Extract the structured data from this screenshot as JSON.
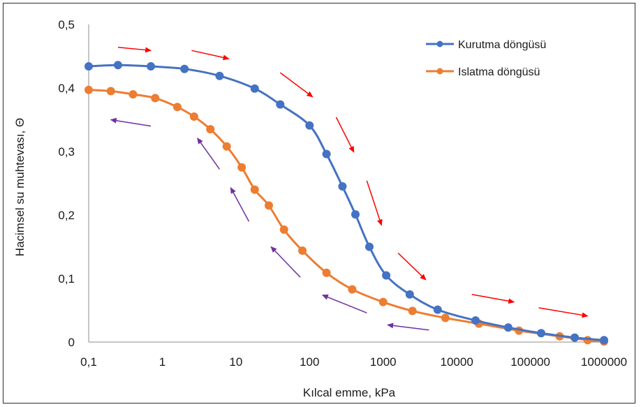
{
  "chart_data": {
    "type": "line",
    "title": "",
    "xlabel": "Kılcal emme, kPa",
    "ylabel": "Hacimsel su muhtevası, Θ",
    "x_scale": "log",
    "xlim": [
      0.1,
      1000000
    ],
    "ylim": [
      0,
      0.5
    ],
    "x_tick_labels": [
      "0,1",
      "1",
      "10",
      "100",
      "1000",
      "10000",
      "100000",
      "1000000"
    ],
    "y_tick_labels": [
      "0",
      "0,1",
      "0,2",
      "0,3",
      "0,4",
      "0,5"
    ],
    "grid": false,
    "legend_position": "top-right",
    "series": [
      {
        "name": "Kurutma döngüsü",
        "color": "#4472C4",
        "points": [
          [
            0.1,
            0.434
          ],
          [
            0.25,
            0.436
          ],
          [
            0.7,
            0.434
          ],
          [
            2,
            0.43
          ],
          [
            6,
            0.419
          ],
          [
            18,
            0.399
          ],
          [
            40,
            0.374
          ],
          [
            100,
            0.341
          ],
          [
            170,
            0.296
          ],
          [
            280,
            0.245
          ],
          [
            420,
            0.201
          ],
          [
            650,
            0.15
          ],
          [
            1100,
            0.105
          ],
          [
            2300,
            0.075
          ],
          [
            5500,
            0.051
          ],
          [
            18000,
            0.034
          ],
          [
            50000,
            0.023
          ],
          [
            140000,
            0.014
          ],
          [
            400000,
            0.007
          ],
          [
            1000000,
            0.003
          ]
        ]
      },
      {
        "name": "Islatma döngüsü",
        "color": "#ED7D31",
        "points": [
          [
            0.1,
            0.397
          ],
          [
            0.2,
            0.395
          ],
          [
            0.4,
            0.39
          ],
          [
            0.8,
            0.384
          ],
          [
            1.6,
            0.37
          ],
          [
            2.7,
            0.355
          ],
          [
            4.5,
            0.335
          ],
          [
            7.5,
            0.308
          ],
          [
            12,
            0.275
          ],
          [
            18,
            0.24
          ],
          [
            28,
            0.215
          ],
          [
            45,
            0.177
          ],
          [
            80,
            0.144
          ],
          [
            170,
            0.109
          ],
          [
            380,
            0.083
          ],
          [
            1000,
            0.063
          ],
          [
            2500,
            0.049
          ],
          [
            7000,
            0.038
          ],
          [
            20000,
            0.029
          ],
          [
            70000,
            0.018
          ],
          [
            250000,
            0.009
          ],
          [
            600000,
            0.003
          ],
          [
            1000000,
            0.001
          ]
        ]
      }
    ]
  },
  "annotations": {
    "red_arrows": [
      {
        "from": [
          0.25,
          0.464
        ],
        "to": [
          0.7,
          0.459
        ],
        "color": "#FF0000"
      },
      {
        "from": [
          2.5,
          0.459
        ],
        "to": [
          8,
          0.446
        ],
        "color": "#FF0000"
      },
      {
        "from": [
          40,
          0.424
        ],
        "to": [
          110,
          0.386
        ],
        "color": "#FF0000"
      },
      {
        "from": [
          230,
          0.354
        ],
        "to": [
          400,
          0.299
        ],
        "color": "#FF0000"
      },
      {
        "from": [
          600,
          0.254
        ],
        "to": [
          950,
          0.184
        ],
        "color": "#FF0000"
      },
      {
        "from": [
          1600,
          0.14
        ],
        "to": [
          3800,
          0.098
        ],
        "color": "#FF0000"
      },
      {
        "from": [
          16000,
          0.075
        ],
        "to": [
          60000,
          0.063
        ],
        "color": "#FF0000"
      },
      {
        "from": [
          130000,
          0.054
        ],
        "to": [
          600000,
          0.041
        ],
        "color": "#FF0000"
      }
    ],
    "purple_arrows": [
      {
        "from": [
          0.7,
          0.34
        ],
        "to": [
          0.2,
          0.35
        ],
        "color": "#7030A0"
      },
      {
        "from": [
          6,
          0.272
        ],
        "to": [
          3,
          0.321
        ],
        "color": "#7030A0"
      },
      {
        "from": [
          15,
          0.19
        ],
        "to": [
          8.5,
          0.243
        ],
        "color": "#7030A0"
      },
      {
        "from": [
          75,
          0.102
        ],
        "to": [
          30,
          0.15
        ],
        "color": "#7030A0"
      },
      {
        "from": [
          600,
          0.046
        ],
        "to": [
          150,
          0.074
        ],
        "color": "#7030A0"
      },
      {
        "from": [
          4200,
          0.019
        ],
        "to": [
          1150,
          0.027
        ],
        "color": "#7030A0"
      }
    ]
  }
}
